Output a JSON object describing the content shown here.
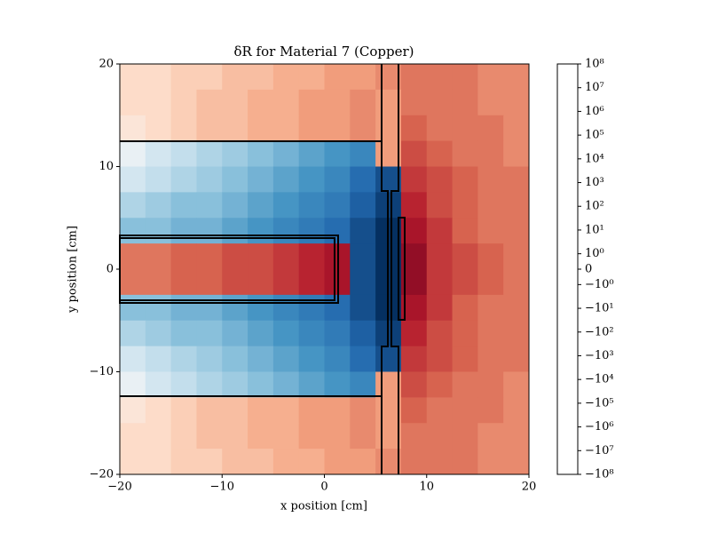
{
  "chart_data": {
    "type": "heatmap",
    "title": "δR for Material 7 (Copper)",
    "xlabel": "x position [cm]",
    "ylabel": "y position [cm]",
    "xlim": [
      -20,
      20
    ],
    "ylim": [
      -20,
      20
    ],
    "xticks": [
      {
        "value": -20,
        "label": "−20"
      },
      {
        "value": -10,
        "label": "−10"
      },
      0,
      10,
      20
    ],
    "yticks": [
      {
        "value": -20,
        "label": "−20"
      },
      {
        "value": -10,
        "label": "−10"
      },
      0,
      10,
      20
    ],
    "colormap": "RdBu_r",
    "color_scale": "symlog",
    "clim": [
      -100000000,
      100000000
    ],
    "cticks": [
      {
        "value": 100000000,
        "label": "10⁸"
      },
      {
        "value": 10000000,
        "label": "10⁷"
      },
      {
        "value": 1000000,
        "label": "10⁶"
      },
      {
        "value": 100000,
        "label": "10⁵"
      },
      {
        "value": 10000,
        "label": "10⁴"
      },
      {
        "value": 1000,
        "label": "10³"
      },
      {
        "value": 100,
        "label": "10²"
      },
      {
        "value": 10,
        "label": "10¹"
      },
      {
        "value": 1,
        "label": "10⁰"
      },
      0,
      {
        "value": -1,
        "label": "−10⁰"
      },
      {
        "value": -10,
        "label": "−10¹"
      },
      {
        "value": -100,
        "label": "−10²"
      },
      {
        "value": -1000,
        "label": "−10³"
      },
      {
        "value": -10000,
        "label": "−10⁴"
      },
      {
        "value": -100000,
        "label": "−10⁵"
      },
      {
        "value": -1000000,
        "label": "−10⁶"
      },
      {
        "value": -10000000,
        "label": "−10⁷"
      },
      {
        "value": -100000000,
        "label": "−10⁸"
      }
    ],
    "z": [
      [
        10,
        10,
        30,
        30,
        100,
        100,
        300,
        300,
        1000,
        1000,
        3000,
        10000,
        10000,
        10000,
        3000,
        3000
      ],
      [
        10,
        10,
        30,
        100,
        100,
        300,
        300,
        1000,
        1000,
        3000,
        1000,
        10000,
        10000,
        10000,
        3000,
        3000
      ],
      [
        3,
        10,
        30,
        100,
        100,
        300,
        300,
        1000,
        1000,
        3000,
        1000,
        30000,
        10000,
        10000,
        10000,
        3000
      ],
      [
        -1,
        -10,
        -30,
        -100,
        -300,
        -1000,
        -3000,
        -10000,
        -30000,
        -100000,
        1000,
        100000,
        30000,
        10000,
        10000,
        3000
      ],
      [
        -10,
        -30,
        -100,
        -300,
        -1000,
        -3000,
        -10000,
        -30000,
        -100000,
        -1000000,
        -10000000,
        300000,
        100000,
        30000,
        10000,
        10000
      ],
      [
        -100,
        -300,
        -1000,
        -1000,
        -3000,
        -10000,
        -30000,
        -100000,
        -300000,
        -3000000,
        -30000000,
        1000000,
        100000,
        30000,
        10000,
        10000
      ],
      [
        -1000,
        -1000,
        -3000,
        -3000,
        -10000,
        -30000,
        -100000,
        -300000,
        -1000000,
        -10000000,
        -100000000,
        3000000,
        300000,
        30000,
        10000,
        10000
      ],
      [
        10000,
        10000,
        30000,
        30000,
        100000,
        100000,
        300000,
        1000000,
        3000000,
        -10000000,
        -100000000,
        10000000,
        300000,
        100000,
        30000,
        10000
      ],
      [
        10000,
        10000,
        30000,
        30000,
        100000,
        100000,
        300000,
        1000000,
        3000000,
        -10000000,
        -100000000,
        10000000,
        300000,
        100000,
        30000,
        10000
      ],
      [
        -1000,
        -1000,
        -3000,
        -3000,
        -10000,
        -30000,
        -100000,
        -300000,
        -1000000,
        -10000000,
        -100000000,
        3000000,
        300000,
        30000,
        10000,
        10000
      ],
      [
        -100,
        -300,
        -1000,
        -1000,
        -3000,
        -10000,
        -30000,
        -100000,
        -300000,
        -3000000,
        -30000000,
        1000000,
        100000,
        30000,
        10000,
        10000
      ],
      [
        -10,
        -30,
        -100,
        -300,
        -1000,
        -3000,
        -10000,
        -30000,
        -100000,
        -1000000,
        -10000000,
        300000,
        100000,
        30000,
        10000,
        10000
      ],
      [
        -1,
        -10,
        -30,
        -100,
        -300,
        -1000,
        -3000,
        -10000,
        -30000,
        -100000,
        1000,
        100000,
        30000,
        10000,
        10000,
        3000
      ],
      [
        3,
        10,
        30,
        100,
        100,
        300,
        300,
        1000,
        1000,
        3000,
        1000,
        30000,
        10000,
        10000,
        10000,
        3000
      ],
      [
        10,
        10,
        30,
        100,
        100,
        300,
        300,
        1000,
        1000,
        3000,
        1000,
        10000,
        10000,
        10000,
        3000,
        3000
      ],
      [
        10,
        10,
        30,
        30,
        100,
        100,
        300,
        300,
        1000,
        1000,
        3000,
        10000,
        10000,
        10000,
        3000,
        3000
      ]
    ]
  }
}
